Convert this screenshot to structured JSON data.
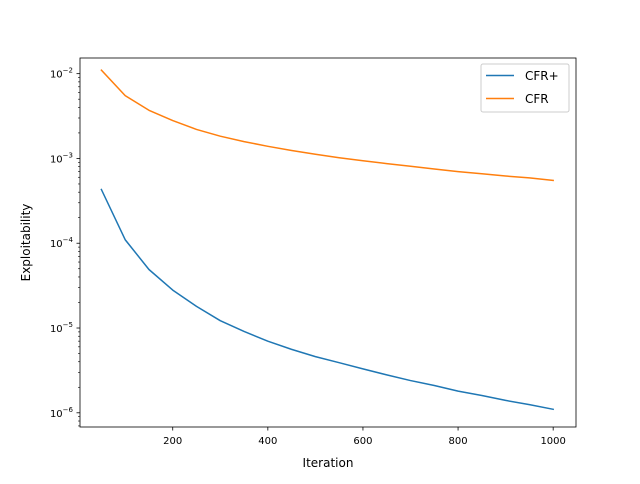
{
  "chart_data": {
    "type": "line",
    "title": "",
    "xlabel": "Iteration",
    "ylabel": "Exploitability",
    "yscale": "log",
    "xlim": [
      5,
      1048
    ],
    "ylim": [
      6.8e-07,
      0.0153
    ],
    "grid": false,
    "legend_position": "top-right",
    "x_ticks": [
      {
        "value": 200,
        "label": "200"
      },
      {
        "value": 400,
        "label": "400"
      },
      {
        "value": 600,
        "label": "600"
      },
      {
        "value": 800,
        "label": "800"
      },
      {
        "value": 1000,
        "label": "1000"
      }
    ],
    "y_ticks": [
      {
        "value": 1e-06,
        "base": "10",
        "exp": "−6"
      },
      {
        "value": 1e-05,
        "base": "10",
        "exp": "−5"
      },
      {
        "value": 0.0001,
        "base": "10",
        "exp": "−4"
      },
      {
        "value": 0.001,
        "base": "10",
        "exp": "−3"
      },
      {
        "value": 0.01,
        "base": "10",
        "exp": "−2"
      }
    ],
    "x": [
      50,
      100,
      150,
      200,
      250,
      300,
      350,
      400,
      450,
      500,
      550,
      600,
      650,
      700,
      750,
      800,
      850,
      900,
      950,
      1000
    ],
    "series": [
      {
        "name": "CFR+",
        "color": "#1f77b4",
        "values": [
          0.00043,
          0.00011,
          4.9e-05,
          2.8e-05,
          1.8e-05,
          1.22e-05,
          9.1e-06,
          7e-06,
          5.6e-06,
          4.6e-06,
          3.9e-06,
          3.3e-06,
          2.8e-06,
          2.4e-06,
          2.1e-06,
          1.8e-06,
          1.6e-06,
          1.4e-06,
          1.25e-06,
          1.1e-06
        ]
      },
      {
        "name": "CFR",
        "color": "#ff7f0e",
        "values": [
          0.011,
          0.0055,
          0.0037,
          0.0028,
          0.0022,
          0.00183,
          0.00158,
          0.00139,
          0.00124,
          0.00112,
          0.00102,
          0.00094,
          0.00087,
          0.00081,
          0.00075,
          0.0007,
          0.00066,
          0.00062,
          0.00059,
          0.00055
        ]
      }
    ]
  }
}
